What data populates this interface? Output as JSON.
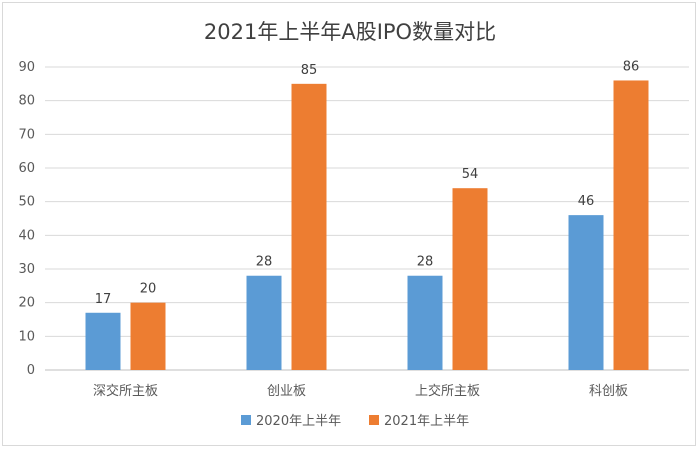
{
  "chart_data": {
    "type": "bar",
    "title": "2021年上半年A股IPO数量对比",
    "categories": [
      "深交所主板",
      "创业板",
      "上交所主板",
      "科创板"
    ],
    "series": [
      {
        "name": "2020年上半年",
        "values": [
          17,
          28,
          28,
          46
        ],
        "color": "#5b9bd5"
      },
      {
        "name": "2021年上半年",
        "values": [
          20,
          85,
          54,
          86
        ],
        "color": "#ed7d31"
      }
    ],
    "yticks": [
      0,
      10,
      20,
      30,
      40,
      50,
      60,
      70,
      80,
      90
    ],
    "ylim": [
      0,
      90
    ],
    "grid": true,
    "legend": "bottom",
    "xlabel": "",
    "ylabel": ""
  }
}
